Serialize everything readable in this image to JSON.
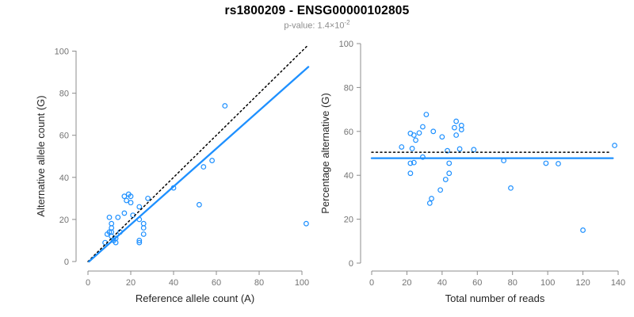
{
  "header": {
    "title": "rs1800209 - ENSG00000102805",
    "subtitle_label": "p-value:",
    "subtitle_mantissa": "1.4",
    "subtitle_multiplier": "×10",
    "subtitle_exponent": "-2"
  },
  "colors": {
    "point_blue": "#1E90FF",
    "fit_blue": "#1E90FF",
    "reference_black": "#000000",
    "axis_gray": "#8C8C8C",
    "tick_text_gray": "#737373",
    "label_dark": "#262626"
  },
  "chart_data": [
    {
      "type": "scatter",
      "panel": "left",
      "xlabel": "Reference allele count (A)",
      "ylabel": "Alternative allele count (G)",
      "xlim": [
        0,
        103
      ],
      "ylim": [
        0,
        103
      ],
      "xticks": [
        0,
        20,
        40,
        60,
        80,
        100
      ],
      "yticks": [
        0,
        20,
        40,
        60,
        80,
        100
      ],
      "grid": false,
      "legend": "none",
      "points": [
        [
          8,
          9
        ],
        [
          9,
          13
        ],
        [
          10,
          21
        ],
        [
          10,
          14
        ],
        [
          11,
          18
        ],
        [
          11,
          16
        ],
        [
          11,
          14
        ],
        [
          11,
          12
        ],
        [
          12,
          10
        ],
        [
          13,
          11
        ],
        [
          13,
          9
        ],
        [
          14,
          21
        ],
        [
          15,
          14
        ],
        [
          17,
          23
        ],
        [
          17,
          31
        ],
        [
          18,
          29
        ],
        [
          19,
          32
        ],
        [
          20,
          31
        ],
        [
          20,
          28
        ],
        [
          21,
          22
        ],
        [
          24,
          26
        ],
        [
          24,
          20
        ],
        [
          24,
          10
        ],
        [
          24,
          9
        ],
        [
          26,
          18
        ],
        [
          26,
          16
        ],
        [
          26,
          13
        ],
        [
          28,
          30
        ],
        [
          40,
          35
        ],
        [
          52,
          27
        ],
        [
          54,
          45
        ],
        [
          58,
          48
        ],
        [
          64,
          74
        ],
        [
          102,
          18
        ]
      ],
      "lines": [
        {
          "name": "identity-line",
          "style": "dotted",
          "color": "#000000",
          "width": 1.5,
          "dash": "2 3.5",
          "x1": 0,
          "y1": 0,
          "x2": 103,
          "y2": 103
        },
        {
          "name": "regression-line",
          "style": "solid",
          "color": "#1E90FF",
          "width": 2.3,
          "dash": "",
          "x1": 0.5,
          "y1": 0,
          "x2": 103,
          "y2": 92.5
        }
      ]
    },
    {
      "type": "scatter",
      "panel": "right",
      "xlabel": "Total number of reads",
      "ylabel": "Percentage alternative (G)",
      "xlim": [
        0,
        140
      ],
      "ylim": [
        0,
        100
      ],
      "xticks": [
        0,
        20,
        40,
        60,
        80,
        100,
        120,
        140
      ],
      "yticks": [
        0,
        20,
        40,
        60,
        80,
        100
      ],
      "grid": false,
      "legend": "none",
      "points": [
        [
          17,
          52.9
        ],
        [
          22,
          59.1
        ],
        [
          31,
          67.7
        ],
        [
          24,
          58.3
        ],
        [
          29,
          62.1
        ],
        [
          27,
          59.3
        ],
        [
          25,
          56.0
        ],
        [
          23,
          52.2
        ],
        [
          22,
          45.5
        ],
        [
          24,
          45.8
        ],
        [
          22,
          40.9
        ],
        [
          35,
          60.0
        ],
        [
          29,
          48.3
        ],
        [
          40,
          57.5
        ],
        [
          48,
          64.6
        ],
        [
          47,
          61.7
        ],
        [
          51,
          62.7
        ],
        [
          51,
          60.8
        ],
        [
          48,
          58.3
        ],
        [
          43,
          51.2
        ],
        [
          50,
          52.0
        ],
        [
          44,
          45.5
        ],
        [
          34,
          29.4
        ],
        [
          33,
          27.3
        ],
        [
          44,
          40.9
        ],
        [
          42,
          38.1
        ],
        [
          39,
          33.3
        ],
        [
          58,
          51.7
        ],
        [
          75,
          46.7
        ],
        [
          79,
          34.2
        ],
        [
          99,
          45.5
        ],
        [
          106,
          45.3
        ],
        [
          138,
          53.6
        ],
        [
          120,
          15.0
        ]
      ],
      "lines": [
        {
          "name": "null-50pct-line",
          "style": "dotted",
          "color": "#000000",
          "width": 1.5,
          "dash": "2 3.5",
          "x1": 0,
          "y1": 50.5,
          "x2": 135,
          "y2": 50.5
        },
        {
          "name": "regression-line",
          "style": "solid",
          "color": "#1E90FF",
          "width": 2.3,
          "dash": "",
          "x1": 0,
          "y1": 47.8,
          "x2": 137,
          "y2": 47.8
        }
      ]
    }
  ]
}
